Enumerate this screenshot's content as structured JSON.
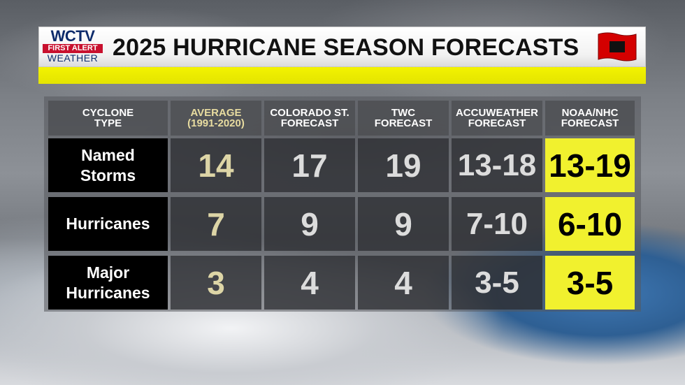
{
  "header": {
    "logo": {
      "main": "WCTV",
      "badge": "FIRST ALERT",
      "sub": "WEATHER"
    },
    "title": "2025 HURRICANE SEASON FORECASTS",
    "flag_icon": "hurricane-warning-flag-icon"
  },
  "colors": {
    "accent_yellow": "#f1f12e",
    "average_text": "#ddd5a6",
    "logo_blue": "#0d2b6b",
    "logo_red": "#c8102e"
  },
  "table": {
    "columns": [
      {
        "line1": "CYCLONE",
        "line2": "TYPE"
      },
      {
        "line1": "AVERAGE",
        "line2": "(1991-2020)"
      },
      {
        "line1": "COLORADO ST.",
        "line2": "FORECAST"
      },
      {
        "line1": "TWC",
        "line2": "FORECAST"
      },
      {
        "line1": "ACCUWEATHER",
        "line2": "FORECAST"
      },
      {
        "line1": "NOAA/NHC",
        "line2": "FORECAST"
      }
    ],
    "rows": [
      {
        "line1": "Named",
        "line2": "Storms",
        "values": [
          "14",
          "17",
          "19",
          "13-18",
          "13-19"
        ]
      },
      {
        "line1": "Hurricanes",
        "line2": "",
        "values": [
          "7",
          "9",
          "9",
          "7-10",
          "6-10"
        ]
      },
      {
        "line1": "Major",
        "line2": "Hurricanes",
        "values": [
          "3",
          "4",
          "4",
          "3-5",
          "3-5"
        ]
      }
    ]
  }
}
